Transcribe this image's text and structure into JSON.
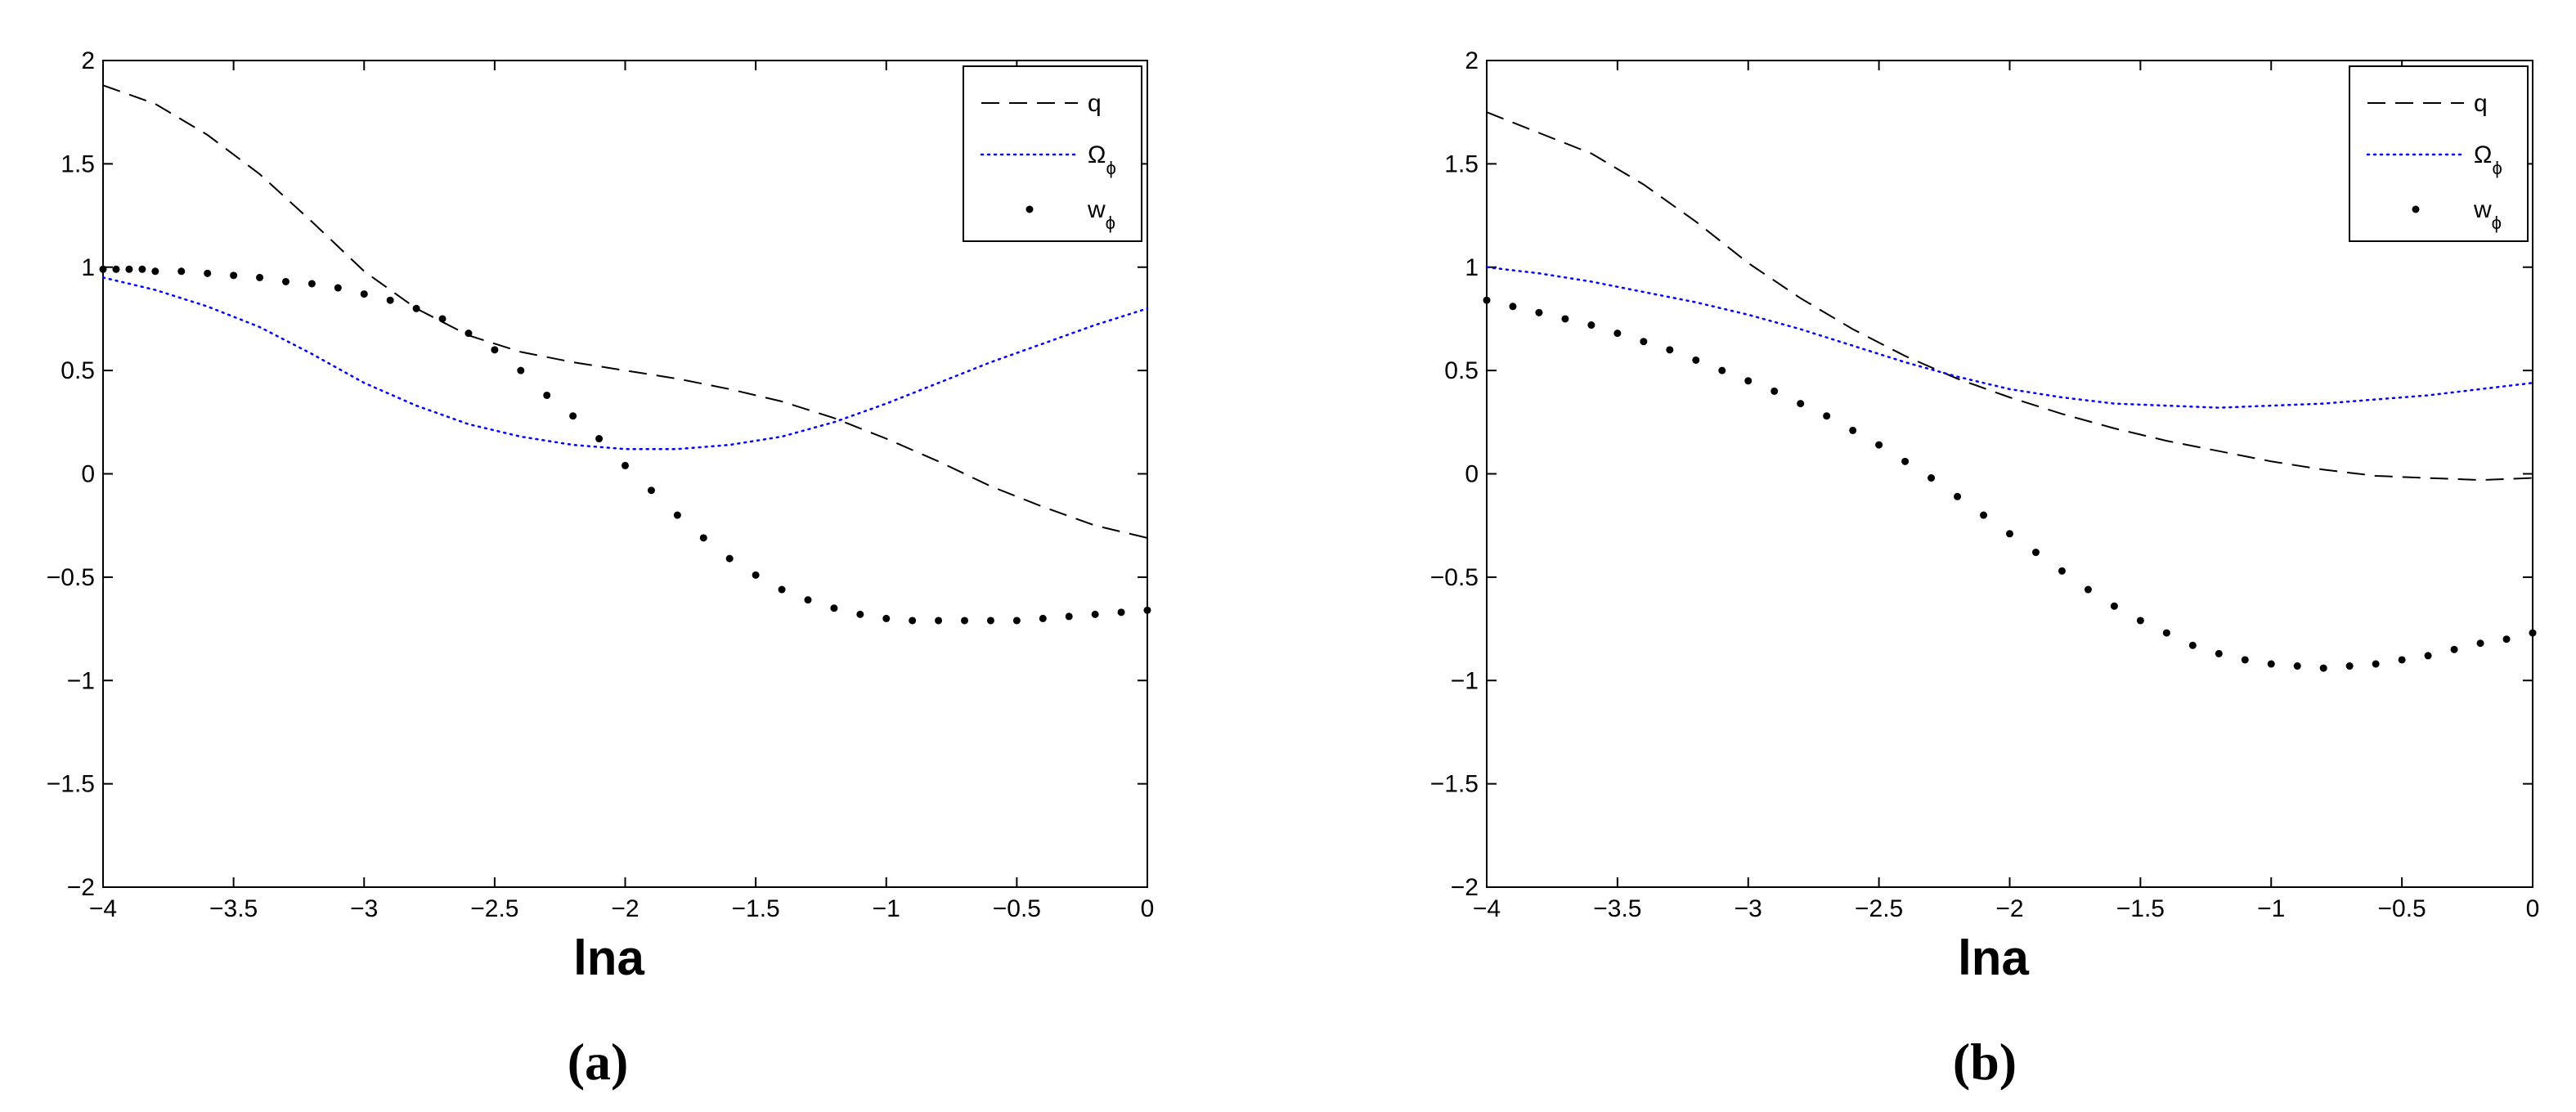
{
  "chart_data": [
    {
      "type": "line",
      "caption": "(a)",
      "xlabel": "lna",
      "ylabel": "",
      "xlim": [
        -4,
        0
      ],
      "ylim": [
        -2,
        2
      ],
      "xticks": [
        -4,
        -3.5,
        -3,
        -2.5,
        -2,
        -1.5,
        -1,
        -0.5,
        0
      ],
      "xtick_labels": [
        "−4",
        "−3.5",
        "−3",
        "−2.5",
        "−2",
        "−1.5",
        "−1",
        "−0.5",
        "0"
      ],
      "yticks": [
        2,
        1.5,
        1,
        0.5,
        0,
        -0.5,
        -1,
        -1.5,
        -2
      ],
      "ytick_labels": [
        "2",
        "1.5",
        "1",
        "0.5",
        "0",
        "−0.5",
        "−1",
        "−1.5",
        "−2"
      ],
      "grid": false,
      "legend_position": "top-right",
      "series": [
        {
          "name": "q",
          "name_sub": "",
          "style": "dashed",
          "color": "#000000",
          "x": [
            -4,
            -3.8,
            -3.6,
            -3.4,
            -3.2,
            -3.0,
            -2.8,
            -2.6,
            -2.4,
            -2.2,
            -2.0,
            -1.8,
            -1.6,
            -1.4,
            -1.2,
            -1.0,
            -0.8,
            -0.6,
            -0.4,
            -0.2,
            0
          ],
          "y": [
            1.88,
            1.79,
            1.64,
            1.45,
            1.22,
            0.98,
            0.8,
            0.67,
            0.59,
            0.54,
            0.5,
            0.46,
            0.41,
            0.35,
            0.27,
            0.17,
            0.06,
            -0.06,
            -0.16,
            -0.25,
            -0.31
          ]
        },
        {
          "name": "Ω",
          "name_sub": "ϕ",
          "style": "dotted",
          "color": "#0000ff",
          "x": [
            -4,
            -3.8,
            -3.6,
            -3.4,
            -3.2,
            -3.0,
            -2.8,
            -2.6,
            -2.4,
            -2.2,
            -2.0,
            -1.8,
            -1.6,
            -1.4,
            -1.2,
            -1.0,
            -0.8,
            -0.6,
            -0.4,
            -0.2,
            0
          ],
          "y": [
            0.95,
            0.89,
            0.81,
            0.71,
            0.58,
            0.44,
            0.33,
            0.24,
            0.18,
            0.14,
            0.12,
            0.12,
            0.14,
            0.18,
            0.25,
            0.34,
            0.44,
            0.54,
            0.63,
            0.72,
            0.8
          ]
        },
        {
          "name": "w",
          "name_sub": "ϕ",
          "style": "markers",
          "color": "#000000",
          "x": [
            -4.0,
            -3.95,
            -3.9,
            -3.85,
            -3.8,
            -3.7,
            -3.6,
            -3.5,
            -3.4,
            -3.3,
            -3.2,
            -3.1,
            -3.0,
            -2.9,
            -2.8,
            -2.7,
            -2.6,
            -2.5,
            -2.4,
            -2.3,
            -2.2,
            -2.1,
            -2.0,
            -1.9,
            -1.8,
            -1.7,
            -1.6,
            -1.5,
            -1.4,
            -1.3,
            -1.2,
            -1.1,
            -1.0,
            -0.9,
            -0.8,
            -0.7,
            -0.6,
            -0.5,
            -0.4,
            -0.3,
            -0.2,
            -0.1,
            0.0
          ],
          "y": [
            0.99,
            0.99,
            0.99,
            0.99,
            0.98,
            0.98,
            0.97,
            0.96,
            0.95,
            0.93,
            0.92,
            0.9,
            0.87,
            0.84,
            0.8,
            0.75,
            0.68,
            0.6,
            0.5,
            0.38,
            0.28,
            0.17,
            0.04,
            -0.08,
            -0.2,
            -0.31,
            -0.41,
            -0.49,
            -0.56,
            -0.61,
            -0.65,
            -0.68,
            -0.7,
            -0.71,
            -0.71,
            -0.71,
            -0.71,
            -0.71,
            -0.7,
            -0.69,
            -0.68,
            -0.67,
            -0.66
          ]
        }
      ]
    },
    {
      "type": "line",
      "caption": "(b)",
      "xlabel": "lna",
      "ylabel": "",
      "xlim": [
        -4,
        0
      ],
      "ylim": [
        -2,
        2
      ],
      "xticks": [
        -4,
        -3.5,
        -3,
        -2.5,
        -2,
        -1.5,
        -1,
        -0.5,
        0
      ],
      "xtick_labels": [
        "−4",
        "−3.5",
        "−3",
        "−2.5",
        "−2",
        "−1.5",
        "−1",
        "−0.5",
        "0"
      ],
      "yticks": [
        2,
        1.5,
        1,
        0.5,
        0,
        -0.5,
        -1,
        -1.5,
        -2
      ],
      "ytick_labels": [
        "2",
        "1.5",
        "1",
        "0.5",
        "0",
        "−0.5",
        "−1",
        "−1.5",
        "−2"
      ],
      "grid": false,
      "legend_position": "top-right",
      "series": [
        {
          "name": "q",
          "name_sub": "",
          "style": "dashed",
          "color": "#000000",
          "x": [
            -4,
            -3.8,
            -3.6,
            -3.4,
            -3.2,
            -3.0,
            -2.8,
            -2.6,
            -2.4,
            -2.2,
            -2.0,
            -1.8,
            -1.6,
            -1.4,
            -1.2,
            -1.0,
            -0.8,
            -0.6,
            -0.4,
            -0.2,
            0
          ],
          "y": [
            1.75,
            1.65,
            1.55,
            1.4,
            1.22,
            1.02,
            0.85,
            0.7,
            0.57,
            0.46,
            0.37,
            0.29,
            0.22,
            0.16,
            0.11,
            0.06,
            0.02,
            -0.01,
            -0.02,
            -0.03,
            -0.02
          ]
        },
        {
          "name": "Ω",
          "name_sub": "ϕ",
          "style": "dotted",
          "color": "#0000ff",
          "x": [
            -4,
            -3.8,
            -3.6,
            -3.4,
            -3.2,
            -3.0,
            -2.8,
            -2.6,
            -2.4,
            -2.2,
            -2.0,
            -1.8,
            -1.6,
            -1.4,
            -1.2,
            -1.0,
            -0.8,
            -0.6,
            -0.4,
            -0.2,
            0
          ],
          "y": [
            1.0,
            0.97,
            0.93,
            0.88,
            0.83,
            0.77,
            0.7,
            0.62,
            0.54,
            0.47,
            0.41,
            0.37,
            0.34,
            0.33,
            0.32,
            0.33,
            0.34,
            0.36,
            0.38,
            0.41,
            0.44
          ]
        },
        {
          "name": "w",
          "name_sub": "ϕ",
          "style": "markers",
          "color": "#000000",
          "x": [
            -4.0,
            -3.9,
            -3.8,
            -3.7,
            -3.6,
            -3.5,
            -3.4,
            -3.3,
            -3.2,
            -3.1,
            -3.0,
            -2.9,
            -2.8,
            -2.7,
            -2.6,
            -2.5,
            -2.4,
            -2.3,
            -2.2,
            -2.1,
            -2.0,
            -1.9,
            -1.8,
            -1.7,
            -1.6,
            -1.5,
            -1.4,
            -1.3,
            -1.2,
            -1.1,
            -1.0,
            -0.9,
            -0.8,
            -0.7,
            -0.6,
            -0.5,
            -0.4,
            -0.3,
            -0.2,
            -0.1,
            0.0
          ],
          "y": [
            0.84,
            0.81,
            0.78,
            0.75,
            0.72,
            0.68,
            0.64,
            0.6,
            0.55,
            0.5,
            0.45,
            0.4,
            0.34,
            0.28,
            0.21,
            0.14,
            0.06,
            -0.02,
            -0.11,
            -0.2,
            -0.29,
            -0.38,
            -0.47,
            -0.56,
            -0.64,
            -0.71,
            -0.77,
            -0.83,
            -0.87,
            -0.9,
            -0.92,
            -0.93,
            -0.94,
            -0.93,
            -0.92,
            -0.9,
            -0.88,
            -0.85,
            -0.82,
            -0.8,
            -0.77
          ]
        }
      ]
    }
  ]
}
